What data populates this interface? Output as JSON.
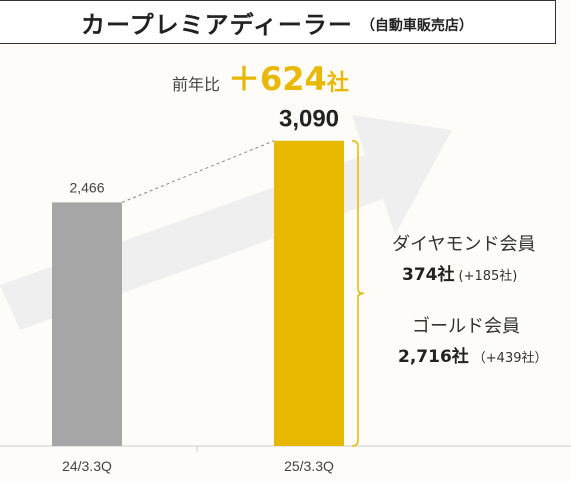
{
  "title": {
    "main": "カープレミアディーラー",
    "sub": "（自動車販売店）"
  },
  "yoy": {
    "label": "前年比",
    "value": "＋624",
    "unit": "社"
  },
  "breakdown": [
    {
      "name": "ダイヤモンド会員",
      "value": "374社",
      "delta": "(+185社)"
    },
    {
      "name": "ゴールド会員",
      "value": "2,716社",
      "delta": "（+439社）"
    }
  ],
  "chart_data": {
    "type": "bar",
    "categories": [
      "24/3.3Q",
      "25/3.3Q"
    ],
    "values": [
      2466,
      3090
    ],
    "value_labels": [
      "2,466",
      "3,090"
    ],
    "bar_colors": [
      "#a6a6a6",
      "#e6b800"
    ],
    "ylim": [
      0,
      3300
    ],
    "grid": false,
    "colors": {
      "arrow": "#eeeeee",
      "bracket": "#e6b800",
      "connector": "#888888",
      "axis": "#cccccc"
    }
  }
}
